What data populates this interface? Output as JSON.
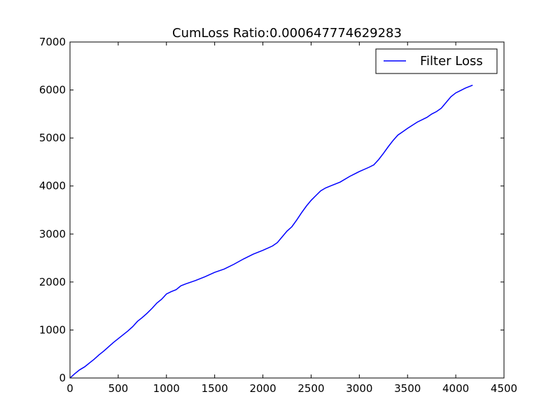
{
  "chart_data": {
    "type": "line",
    "title": "CumLoss Ratio:0.000647774629283",
    "xlabel": "",
    "ylabel": "",
    "xlim": [
      0,
      4500
    ],
    "ylim": [
      0,
      7000
    ],
    "x_ticks": [
      0,
      500,
      1000,
      1500,
      2000,
      2500,
      3000,
      3500,
      4000,
      4500
    ],
    "y_ticks": [
      0,
      1000,
      2000,
      3000,
      4000,
      5000,
      6000,
      7000
    ],
    "grid": false,
    "legend_position": "top-right",
    "series": [
      {
        "name": "Filter Loss",
        "color": "#0000ff",
        "points": [
          [
            0,
            0
          ],
          [
            50,
            90
          ],
          [
            100,
            170
          ],
          [
            150,
            230
          ],
          [
            200,
            310
          ],
          [
            250,
            390
          ],
          [
            300,
            480
          ],
          [
            350,
            560
          ],
          [
            400,
            650
          ],
          [
            450,
            740
          ],
          [
            500,
            820
          ],
          [
            550,
            900
          ],
          [
            600,
            980
          ],
          [
            650,
            1070
          ],
          [
            700,
            1180
          ],
          [
            750,
            1260
          ],
          [
            800,
            1350
          ],
          [
            850,
            1450
          ],
          [
            900,
            1560
          ],
          [
            950,
            1640
          ],
          [
            1000,
            1750
          ],
          [
            1050,
            1800
          ],
          [
            1100,
            1840
          ],
          [
            1150,
            1920
          ],
          [
            1200,
            1960
          ],
          [
            1300,
            2030
          ],
          [
            1400,
            2110
          ],
          [
            1500,
            2200
          ],
          [
            1600,
            2270
          ],
          [
            1700,
            2370
          ],
          [
            1800,
            2480
          ],
          [
            1900,
            2580
          ],
          [
            2000,
            2660
          ],
          [
            2100,
            2750
          ],
          [
            2150,
            2820
          ],
          [
            2200,
            2940
          ],
          [
            2250,
            3060
          ],
          [
            2300,
            3150
          ],
          [
            2350,
            3290
          ],
          [
            2400,
            3440
          ],
          [
            2450,
            3580
          ],
          [
            2500,
            3700
          ],
          [
            2550,
            3800
          ],
          [
            2600,
            3900
          ],
          [
            2650,
            3960
          ],
          [
            2700,
            4000
          ],
          [
            2800,
            4080
          ],
          [
            2900,
            4200
          ],
          [
            3000,
            4300
          ],
          [
            3100,
            4390
          ],
          [
            3150,
            4440
          ],
          [
            3200,
            4550
          ],
          [
            3250,
            4680
          ],
          [
            3300,
            4820
          ],
          [
            3350,
            4950
          ],
          [
            3400,
            5060
          ],
          [
            3450,
            5130
          ],
          [
            3500,
            5200
          ],
          [
            3600,
            5330
          ],
          [
            3700,
            5430
          ],
          [
            3750,
            5500
          ],
          [
            3800,
            5550
          ],
          [
            3850,
            5620
          ],
          [
            3900,
            5740
          ],
          [
            3950,
            5860
          ],
          [
            4000,
            5940
          ],
          [
            4050,
            5990
          ],
          [
            4100,
            6040
          ],
          [
            4150,
            6080
          ],
          [
            4175,
            6100
          ]
        ]
      }
    ]
  }
}
